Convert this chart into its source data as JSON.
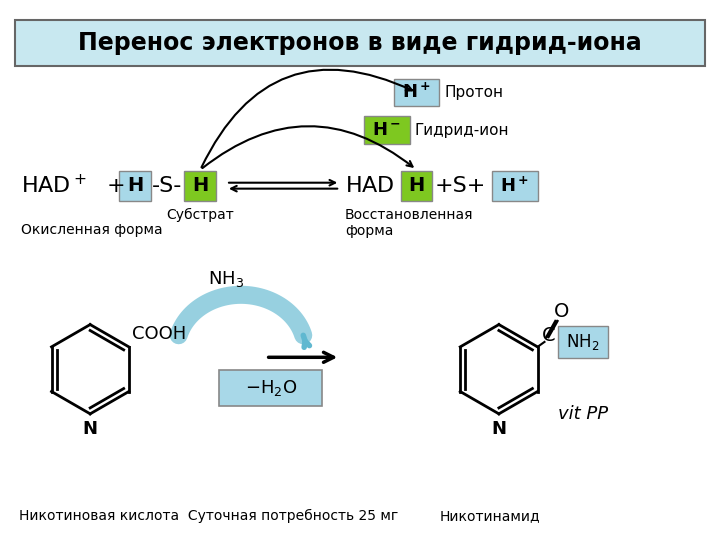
{
  "title": "Перенос электронов в виде гидрид-иона",
  "title_bg": "#c8e8f0",
  "title_border": "#666666",
  "light_blue": "#a8d8e8",
  "green": "#7ec820",
  "proton_label": "Протон",
  "hydride_label": "Гидрид-ион",
  "substrate_label": "Субстрат",
  "oxidized_label": "Окисленная форма",
  "reduced_label": "Восстановленная\nформа",
  "nicotinic_label": "Никотиновая кислота  Суточная потребность 25 мг",
  "nicotinamide_label": "Никотинамид",
  "vitpp_label": "vit PP",
  "bg_color": "#ffffff"
}
